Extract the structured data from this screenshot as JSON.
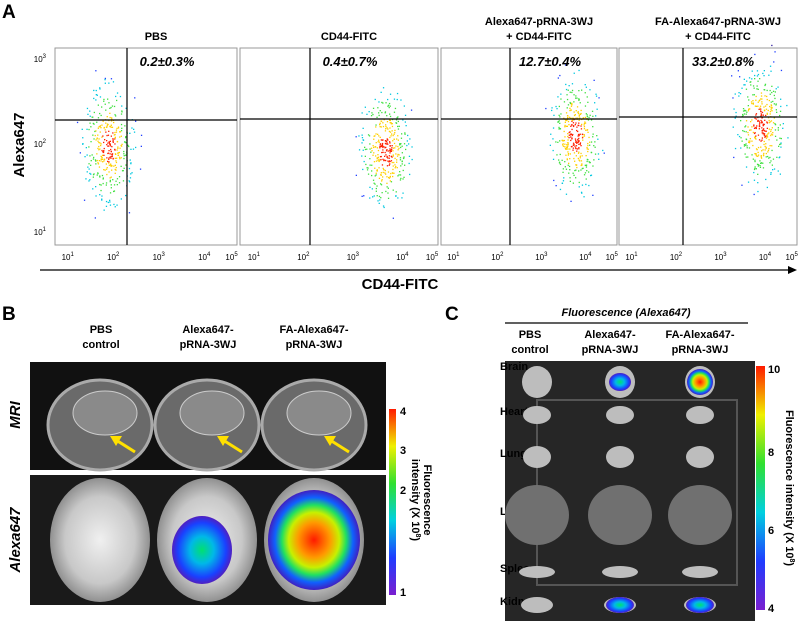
{
  "panel_a": {
    "label": "A",
    "y_axis_label": "Alexa647",
    "x_axis_label": "CD44-FITC",
    "y_ticks": [
      {
        "base": "10",
        "exponent": "3"
      },
      {
        "base": "10",
        "exponent": "2"
      },
      {
        "base": "10",
        "exponent": "1"
      }
    ],
    "x_ticks": [
      {
        "base": "10",
        "exponent": "1"
      },
      {
        "base": "10",
        "exponent": "2"
      },
      {
        "base": "10",
        "exponent": "3"
      },
      {
        "base": "10",
        "exponent": "4"
      },
      {
        "base": "10",
        "exponent": "5"
      }
    ],
    "plots": [
      {
        "title": [
          "PBS"
        ],
        "percent": "0.2±0.3%"
      },
      {
        "title": [
          "CD44-FITC"
        ],
        "percent": "0.4±0.7%"
      },
      {
        "title": [
          "Alexa647-pRNA-3WJ",
          "+ CD44-FITC"
        ],
        "percent": "12.7±0.4%"
      },
      {
        "title": [
          "FA-Alexa647-pRNA-3WJ",
          "+ CD44-FITC"
        ],
        "percent": "33.2±0.8%"
      }
    ]
  },
  "panel_b": {
    "label": "B",
    "columns": [
      [
        "PBS",
        "control"
      ],
      [
        "Alexa647-",
        "pRNA-3WJ"
      ],
      [
        "FA-Alexa647-",
        "pRNA-3WJ"
      ]
    ],
    "rows": [
      "MRI",
      "Alexa647"
    ],
    "colorbar": {
      "ticks": [
        "4",
        "3",
        "2",
        "1"
      ],
      "title": "Fluorescence",
      "subtitle": "intensity (X 10",
      "exponent": "8",
      "close": ")"
    }
  },
  "panel_c": {
    "label": "C",
    "header": "Fluorescence (Alexa647)",
    "columns": [
      [
        "PBS",
        "control"
      ],
      [
        "Alexa647-",
        "pRNA-3WJ"
      ],
      [
        "FA-Alexa647-",
        "pRNA-3WJ"
      ]
    ],
    "organs": [
      "Brain",
      "Heart",
      "Lung",
      "Liver",
      "Spleen",
      "Kidney"
    ],
    "colorbar": {
      "ticks": [
        "10",
        "8",
        "6",
        "4"
      ],
      "title": "Fluorescence intensity (X 10",
      "exponent": "8",
      "close": ")"
    }
  }
}
